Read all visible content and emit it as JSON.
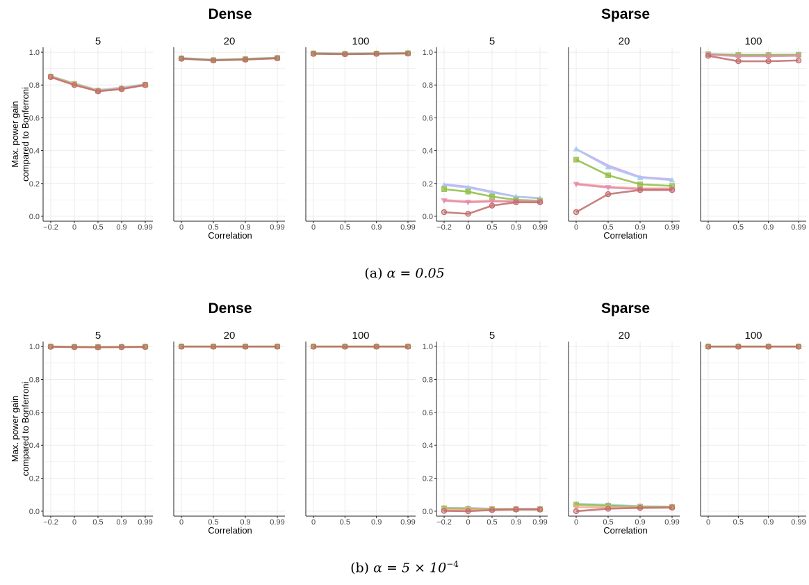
{
  "figure": {
    "captions": [
      {
        "prefix": "(a) ",
        "expression": "α = 0.05"
      },
      {
        "prefix": "(b) ",
        "expression": "α = 5 × 10",
        "superscript": "−4"
      }
    ],
    "y_axis_title_lines": [
      "Max. power gain",
      "compared to Bonferroni"
    ],
    "x_axis_title": "Correlation",
    "group_titles": [
      "Dense",
      "Sparse"
    ],
    "series_colors": [
      "#c06b6b",
      "#f3a98c",
      "#e48ab0",
      "#8fbc3f",
      "#a6c8f0",
      "#cfa0f0"
    ]
  },
  "chart_data": [
    {
      "type": "line",
      "panel": "a",
      "group": "Dense",
      "title": "5",
      "x": [
        "-0.2",
        "0",
        "0.5",
        "0.9",
        "0.99"
      ],
      "ylim": [
        -0.03,
        1.03
      ],
      "yticks": [
        0.0,
        0.2,
        0.4,
        0.6,
        0.8,
        1.0
      ],
      "grid": true,
      "series": [
        {
          "color": "#a6c8f0",
          "marker": "triangle",
          "values": [
            0.855,
            0.81,
            0.77,
            0.785,
            0.805
          ]
        },
        {
          "color": "#8fbc3f",
          "marker": "square",
          "values": [
            0.852,
            0.807,
            0.765,
            0.778,
            0.802
          ]
        },
        {
          "color": "#f3a98c",
          "marker": "triangle-down",
          "values": [
            0.85,
            0.805,
            0.765,
            0.778,
            0.8
          ]
        },
        {
          "color": "#c06b6b",
          "marker": "circle",
          "values": [
            0.848,
            0.8,
            0.762,
            0.775,
            0.8
          ]
        }
      ]
    },
    {
      "type": "line",
      "panel": "a",
      "group": "Dense",
      "title": "20",
      "x": [
        "0",
        "0.5",
        "0.9",
        "0.99"
      ],
      "ylim": [
        -0.03,
        1.03
      ],
      "yticks": [
        0.0,
        0.2,
        0.4,
        0.6,
        0.8,
        1.0
      ],
      "grid": true,
      "series": [
        {
          "color": "#a6c8f0",
          "marker": "triangle",
          "values": [
            0.965,
            0.955,
            0.96,
            0.967
          ]
        },
        {
          "color": "#8fbc3f",
          "marker": "square",
          "values": [
            0.963,
            0.952,
            0.958,
            0.965
          ]
        },
        {
          "color": "#c06b6b",
          "marker": "circle",
          "values": [
            0.96,
            0.95,
            0.955,
            0.963
          ]
        }
      ]
    },
    {
      "type": "line",
      "panel": "a",
      "group": "Dense",
      "title": "100",
      "x": [
        "0",
        "0.5",
        "0.9",
        "0.99"
      ],
      "ylim": [
        -0.03,
        1.03
      ],
      "yticks": [
        0.0,
        0.2,
        0.4,
        0.6,
        0.8,
        1.0
      ],
      "grid": true,
      "series": [
        {
          "color": "#a6c8f0",
          "marker": "triangle",
          "values": [
            0.995,
            0.993,
            0.994,
            0.996
          ]
        },
        {
          "color": "#8fbc3f",
          "marker": "square",
          "values": [
            0.993,
            0.99,
            0.992,
            0.994
          ]
        },
        {
          "color": "#c06b6b",
          "marker": "circle",
          "values": [
            0.99,
            0.988,
            0.99,
            0.992
          ]
        }
      ]
    },
    {
      "type": "line",
      "panel": "a",
      "group": "Sparse",
      "title": "5",
      "x": [
        "-0.2",
        "0",
        "0.5",
        "0.9",
        "0.99"
      ],
      "ylim": [
        -0.03,
        1.03
      ],
      "yticks": [
        0.0,
        0.2,
        0.4,
        0.6,
        0.8,
        1.0
      ],
      "grid": true,
      "series": [
        {
          "color": "#cfa0f0",
          "marker": "none",
          "values": [
            0.195,
            0.18,
            0.15,
            0.12,
            0.11
          ]
        },
        {
          "color": "#a6c8f0",
          "marker": "triangle",
          "values": [
            0.19,
            0.175,
            0.145,
            0.12,
            0.11
          ]
        },
        {
          "color": "#8fbc3f",
          "marker": "square",
          "values": [
            0.165,
            0.15,
            0.12,
            0.1,
            0.095
          ]
        },
        {
          "color": "#f3a98c",
          "marker": "none",
          "values": [
            0.1,
            0.09,
            0.095,
            0.09,
            0.09
          ]
        },
        {
          "color": "#e48ab0",
          "marker": "triangle-down",
          "values": [
            0.095,
            0.085,
            0.09,
            0.09,
            0.09
          ]
        },
        {
          "color": "#c06b6b",
          "marker": "circle",
          "values": [
            0.025,
            0.015,
            0.065,
            0.085,
            0.085
          ]
        }
      ]
    },
    {
      "type": "line",
      "panel": "a",
      "group": "Sparse",
      "title": "20",
      "x": [
        "0",
        "0.5",
        "0.9",
        "0.99"
      ],
      "ylim": [
        -0.03,
        1.03
      ],
      "yticks": [
        0.0,
        0.2,
        0.4,
        0.6,
        0.8,
        1.0
      ],
      "grid": true,
      "series": [
        {
          "color": "#cfa0f0",
          "marker": "none",
          "values": [
            0.41,
            0.31,
            0.24,
            0.225
          ]
        },
        {
          "color": "#a6c8f0",
          "marker": "triangle",
          "values": [
            0.41,
            0.3,
            0.235,
            0.22
          ]
        },
        {
          "color": "#8fbc3f",
          "marker": "square",
          "values": [
            0.345,
            0.25,
            0.195,
            0.185
          ]
        },
        {
          "color": "#f3a98c",
          "marker": "none",
          "values": [
            0.2,
            0.18,
            0.17,
            0.17
          ]
        },
        {
          "color": "#e48ab0",
          "marker": "triangle-down",
          "values": [
            0.195,
            0.175,
            0.165,
            0.165
          ]
        },
        {
          "color": "#c06b6b",
          "marker": "circle",
          "values": [
            0.025,
            0.135,
            0.16,
            0.16
          ]
        }
      ]
    },
    {
      "type": "line",
      "panel": "a",
      "group": "Sparse",
      "title": "100",
      "x": [
        "0",
        "0.5",
        "0.9",
        "0.99"
      ],
      "ylim": [
        -0.03,
        1.03
      ],
      "yticks": [
        0.0,
        0.2,
        0.4,
        0.6,
        0.8,
        1.0
      ],
      "grid": true,
      "series": [
        {
          "color": "#a6c8f0",
          "marker": "triangle",
          "values": [
            0.99,
            0.985,
            0.985,
            0.985
          ]
        },
        {
          "color": "#8fbc3f",
          "marker": "square",
          "values": [
            0.988,
            0.983,
            0.983,
            0.985
          ]
        },
        {
          "color": "#e48ab0",
          "marker": "triangle-down",
          "values": [
            0.985,
            0.975,
            0.975,
            0.978
          ]
        },
        {
          "color": "#c06b6b",
          "marker": "circle",
          "values": [
            0.978,
            0.945,
            0.945,
            0.95
          ]
        }
      ]
    },
    {
      "type": "line",
      "panel": "b",
      "group": "Dense",
      "title": "5",
      "x": [
        "-0.2",
        "0",
        "0.5",
        "0.9",
        "0.99"
      ],
      "ylim": [
        -0.03,
        1.03
      ],
      "yticks": [
        0.0,
        0.2,
        0.4,
        0.6,
        0.8,
        1.0
      ],
      "grid": true,
      "series": [
        {
          "color": "#8fbc3f",
          "marker": "square",
          "values": [
            1.0,
            0.998,
            0.997,
            0.998,
            0.999
          ]
        },
        {
          "color": "#c06b6b",
          "marker": "circle",
          "values": [
            0.998,
            0.996,
            0.995,
            0.996,
            0.997
          ]
        }
      ]
    },
    {
      "type": "line",
      "panel": "b",
      "group": "Dense",
      "title": "20",
      "x": [
        "0",
        "0.5",
        "0.9",
        "0.99"
      ],
      "ylim": [
        -0.03,
        1.03
      ],
      "yticks": [
        0.0,
        0.2,
        0.4,
        0.6,
        0.8,
        1.0
      ],
      "grid": true,
      "series": [
        {
          "color": "#8fbc3f",
          "marker": "square",
          "values": [
            1.0,
            1.0,
            1.0,
            1.0
          ]
        },
        {
          "color": "#c06b6b",
          "marker": "circle",
          "values": [
            0.999,
            0.999,
            0.999,
            0.999
          ]
        }
      ]
    },
    {
      "type": "line",
      "panel": "b",
      "group": "Dense",
      "title": "100",
      "x": [
        "0",
        "0.5",
        "0.9",
        "0.99"
      ],
      "ylim": [
        -0.03,
        1.03
      ],
      "yticks": [
        0.0,
        0.2,
        0.4,
        0.6,
        0.8,
        1.0
      ],
      "grid": true,
      "series": [
        {
          "color": "#8fbc3f",
          "marker": "square",
          "values": [
            1.0,
            1.0,
            1.0,
            1.0
          ]
        },
        {
          "color": "#c06b6b",
          "marker": "circle",
          "values": [
            0.999,
            0.999,
            0.999,
            0.999
          ]
        }
      ]
    },
    {
      "type": "line",
      "panel": "b",
      "group": "Sparse",
      "title": "5",
      "x": [
        "-0.2",
        "0",
        "0.5",
        "0.9",
        "0.99"
      ],
      "ylim": [
        -0.03,
        1.03
      ],
      "yticks": [
        0.0,
        0.2,
        0.4,
        0.6,
        0.8,
        1.0
      ],
      "grid": true,
      "series": [
        {
          "color": "#a6c8f0",
          "marker": "triangle",
          "values": [
            0.02,
            0.02,
            0.015,
            0.015,
            0.015
          ]
        },
        {
          "color": "#8fbc3f",
          "marker": "square",
          "values": [
            0.018,
            0.015,
            0.013,
            0.013,
            0.013
          ]
        },
        {
          "color": "#f3a98c",
          "marker": "triangle-down",
          "values": [
            0.01,
            0.01,
            0.01,
            0.012,
            0.012
          ]
        },
        {
          "color": "#c06b6b",
          "marker": "circle",
          "values": [
            0.002,
            0.0,
            0.007,
            0.01,
            0.01
          ]
        }
      ]
    },
    {
      "type": "line",
      "panel": "b",
      "group": "Sparse",
      "title": "20",
      "x": [
        "0",
        "0.5",
        "0.9",
        "0.99"
      ],
      "ylim": [
        -0.03,
        1.03
      ],
      "yticks": [
        0.0,
        0.2,
        0.4,
        0.6,
        0.8,
        1.0
      ],
      "grid": true,
      "series": [
        {
          "color": "#a6c8f0",
          "marker": "triangle",
          "values": [
            0.045,
            0.04,
            0.03,
            0.028
          ]
        },
        {
          "color": "#8fbc3f",
          "marker": "square",
          "values": [
            0.04,
            0.033,
            0.028,
            0.026
          ]
        },
        {
          "color": "#f3a98c",
          "marker": "triangle-down",
          "values": [
            0.025,
            0.022,
            0.022,
            0.022
          ]
        },
        {
          "color": "#c06b6b",
          "marker": "circle",
          "values": [
            0.0,
            0.015,
            0.02,
            0.022
          ]
        }
      ]
    },
    {
      "type": "line",
      "panel": "b",
      "group": "Sparse",
      "title": "100",
      "x": [
        "0",
        "0.5",
        "0.9",
        "0.99"
      ],
      "ylim": [
        -0.03,
        1.03
      ],
      "yticks": [
        0.0,
        0.2,
        0.4,
        0.6,
        0.8,
        1.0
      ],
      "grid": true,
      "series": [
        {
          "color": "#8fbc3f",
          "marker": "square",
          "values": [
            1.0,
            1.0,
            1.0,
            1.0
          ]
        },
        {
          "color": "#c06b6b",
          "marker": "circle",
          "values": [
            0.999,
            0.999,
            0.999,
            0.999
          ]
        }
      ]
    }
  ]
}
